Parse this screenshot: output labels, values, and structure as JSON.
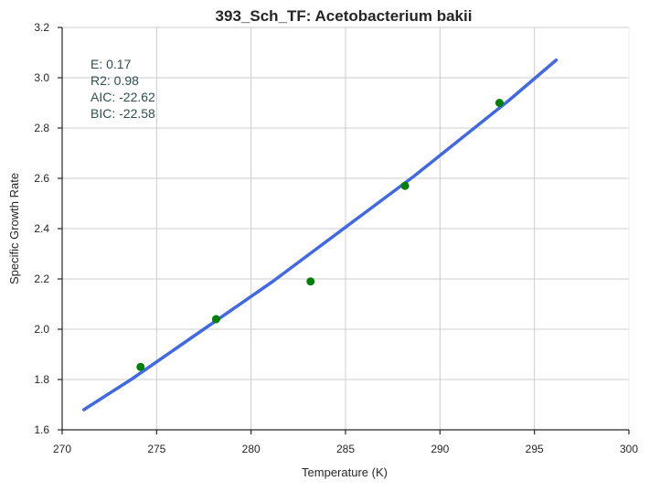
{
  "chart_data": {
    "type": "scatter",
    "title": "393_Sch_TF: Acetobacterium bakii",
    "xlabel": "Temperature (K)",
    "ylabel": "Specific Growth Rate",
    "xlim": [
      270,
      300
    ],
    "ylim": [
      1.6,
      3.2
    ],
    "xticks": [
      "270",
      "275",
      "280",
      "285",
      "290",
      "295",
      "300"
    ],
    "yticks": [
      "1.6",
      "1.8",
      "2.0",
      "2.2",
      "2.4",
      "2.6",
      "2.8",
      "3.0",
      "3.2"
    ],
    "grid": true,
    "annotations": [
      "E:  0.17",
      "R2:  0.98",
      "AIC: -22.62",
      "BIC: -22.58"
    ],
    "series": [
      {
        "kind": "points",
        "color": "#008000",
        "x": [
          274.15,
          278.15,
          283.15,
          288.15,
          293.15
        ],
        "y": [
          1.85,
          2.04,
          2.19,
          2.57,
          2.9
        ]
      },
      {
        "kind": "fitted-curve",
        "color": "#4169e1",
        "x": [
          271.15,
          273.65,
          276.15,
          278.65,
          281.15,
          283.65,
          286.15,
          288.65,
          291.15,
          293.65,
          296.15
        ],
        "y": [
          1.68,
          1.8,
          1.93,
          2.06,
          2.19,
          2.33,
          2.47,
          2.61,
          2.76,
          2.91,
          3.07
        ]
      }
    ]
  }
}
